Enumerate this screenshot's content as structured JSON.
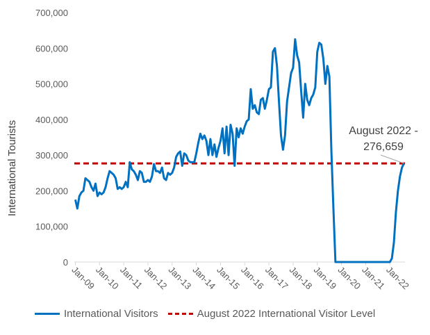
{
  "chart_data": {
    "type": "line",
    "title": "",
    "xlabel": "",
    "ylabel": "International Tourists",
    "ylim": [
      0,
      700000
    ],
    "yticks": [
      "0",
      "100,000",
      "200,000",
      "300,000",
      "400,000",
      "500,000",
      "600,000",
      "700,000"
    ],
    "xtick_labels": [
      "Jan-09",
      "Jan-10",
      "Jan-11",
      "Jan-12",
      "Jan-13",
      "Jan-14",
      "Jan-15",
      "Jan-16",
      "Jan-17",
      "Jan-18",
      "Jan-19",
      "Jan-20",
      "Jan-21",
      "Jan-22"
    ],
    "x_start": "Jan-09",
    "x_end": "Aug-22",
    "series": [
      {
        "name": "International Visitors",
        "color": "#0070c0",
        "style": "solid",
        "values": [
          175000,
          150000,
          185000,
          195000,
          200000,
          235000,
          230000,
          225000,
          210000,
          200000,
          220000,
          185000,
          195000,
          190000,
          195000,
          210000,
          235000,
          255000,
          250000,
          245000,
          235000,
          205000,
          210000,
          205000,
          210000,
          225000,
          210000,
          280000,
          260000,
          255000,
          245000,
          230000,
          255000,
          250000,
          225000,
          225000,
          230000,
          225000,
          240000,
          275000,
          255000,
          255000,
          250000,
          265000,
          235000,
          230000,
          250000,
          245000,
          250000,
          265000,
          295000,
          305000,
          310000,
          270000,
          305000,
          300000,
          285000,
          280000,
          280000,
          280000,
          305000,
          335000,
          360000,
          345000,
          355000,
          340000,
          300000,
          345000,
          300000,
          330000,
          295000,
          320000,
          340000,
          375000,
          305000,
          380000,
          300000,
          385000,
          360000,
          270000,
          375000,
          350000,
          375000,
          360000,
          380000,
          395000,
          400000,
          485000,
          430000,
          440000,
          420000,
          415000,
          455000,
          460000,
          430000,
          455000,
          485000,
          490000,
          590000,
          600000,
          550000,
          450000,
          355000,
          315000,
          355000,
          450000,
          490000,
          530000,
          545000,
          625000,
          580000,
          560000,
          480000,
          405000,
          500000,
          455000,
          440000,
          460000,
          470000,
          490000,
          590000,
          615000,
          610000,
          570000,
          500000,
          550000,
          520000,
          310000,
          150000,
          0,
          0,
          0,
          0,
          0,
          0,
          0,
          0,
          0,
          0,
          0,
          0,
          0,
          0,
          0,
          0,
          0,
          0,
          0,
          0,
          0,
          0,
          0,
          0,
          0,
          0,
          0,
          0,
          10000,
          55000,
          140000,
          200000,
          240000,
          265000,
          276659
        ]
      },
      {
        "name": "August 2022 International Visitor Level",
        "color": "#c00000",
        "style": "dashed",
        "constant": 276659
      }
    ],
    "annotation": {
      "line1": "August 2022 -",
      "line2": "276,659",
      "target_month": "Aug-22",
      "target_value": 276659
    },
    "legend": {
      "placement": "bottom",
      "items": [
        "International Visitors",
        "August 2022 International Visitor Level"
      ]
    },
    "grid": false
  }
}
